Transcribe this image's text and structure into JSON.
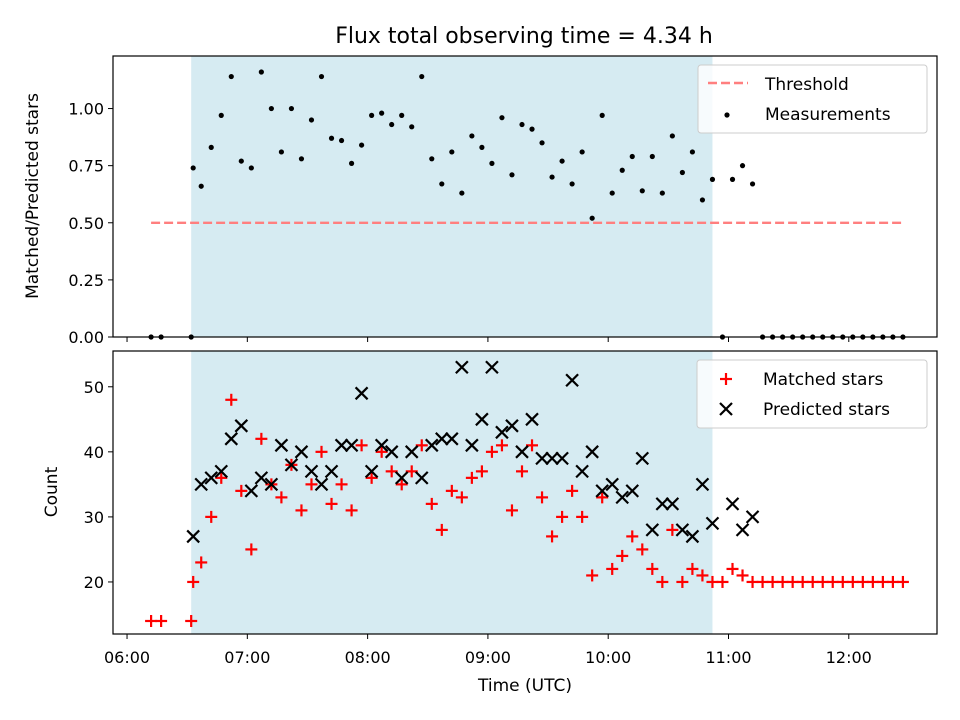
{
  "figure": {
    "title": "Flux total observing time = 4.34 h",
    "xlabel": "Time (UTC)",
    "x_tick_labels": [
      "06:00",
      "07:00",
      "08:00",
      "09:00",
      "10:00",
      "11:00",
      "12:00"
    ]
  },
  "chart_data": [
    {
      "type": "scatter",
      "ylabel": "Matched/Predicted stars",
      "ylim": [
        0,
        1.23
      ],
      "yticks": [
        "0.00",
        "0.25",
        "0.50",
        "0.75",
        "1.00"
      ],
      "xlim": [
        "05:53",
        "12:44"
      ],
      "shaded_interval": [
        "06:32",
        "10:52"
      ],
      "shaded_color": "#add8e6",
      "legend_position": "top-right",
      "threshold": {
        "name": "Threshold",
        "value": 0.5,
        "x_range": [
          "06:12",
          "12:28"
        ],
        "color": "#ff7f7f",
        "style": "dashed"
      },
      "series": [
        {
          "name": "Measurements",
          "color": "#000000",
          "marker": "dot",
          "points": [
            [
              "06:12",
              0.0
            ],
            [
              "06:17",
              0.0
            ],
            [
              "06:32",
              0.0
            ],
            [
              "06:33",
              0.74
            ],
            [
              "06:37",
              0.66
            ],
            [
              "06:42",
              0.83
            ],
            [
              "06:47",
              0.97
            ],
            [
              "06:52",
              1.14
            ],
            [
              "06:57",
              0.77
            ],
            [
              "07:02",
              0.74
            ],
            [
              "07:07",
              1.16
            ],
            [
              "07:12",
              1.0
            ],
            [
              "07:17",
              0.81
            ],
            [
              "07:22",
              1.0
            ],
            [
              "07:27",
              0.78
            ],
            [
              "07:32",
              0.95
            ],
            [
              "07:37",
              1.14
            ],
            [
              "07:42",
              0.87
            ],
            [
              "07:47",
              0.86
            ],
            [
              "07:52",
              0.76
            ],
            [
              "07:57",
              0.84
            ],
            [
              "08:02",
              0.97
            ],
            [
              "08:07",
              0.98
            ],
            [
              "08:12",
              0.93
            ],
            [
              "08:17",
              0.97
            ],
            [
              "08:22",
              0.92
            ],
            [
              "08:27",
              1.14
            ],
            [
              "08:32",
              0.78
            ],
            [
              "08:37",
              0.67
            ],
            [
              "08:42",
              0.81
            ],
            [
              "08:47",
              0.63
            ],
            [
              "08:52",
              0.88
            ],
            [
              "08:57",
              0.83
            ],
            [
              "09:02",
              0.76
            ],
            [
              "09:07",
              0.96
            ],
            [
              "09:12",
              0.71
            ],
            [
              "09:17",
              0.93
            ],
            [
              "09:22",
              0.91
            ],
            [
              "09:27",
              0.85
            ],
            [
              "09:32",
              0.7
            ],
            [
              "09:37",
              0.77
            ],
            [
              "09:42",
              0.67
            ],
            [
              "09:47",
              0.81
            ],
            [
              "09:52",
              0.52
            ],
            [
              "09:57",
              0.97
            ],
            [
              "10:02",
              0.63
            ],
            [
              "10:07",
              0.73
            ],
            [
              "10:12",
              0.79
            ],
            [
              "10:17",
              0.64
            ],
            [
              "10:22",
              0.79
            ],
            [
              "10:27",
              0.63
            ],
            [
              "10:32",
              0.88
            ],
            [
              "10:37",
              0.72
            ],
            [
              "10:42",
              0.81
            ],
            [
              "10:47",
              0.6
            ],
            [
              "10:52",
              0.69
            ],
            [
              "10:57",
              0.0
            ],
            [
              "11:02",
              0.69
            ],
            [
              "11:07",
              0.75
            ],
            [
              "11:12",
              0.67
            ],
            [
              "11:17",
              0.0
            ],
            [
              "11:22",
              0.0
            ],
            [
              "11:27",
              0.0
            ],
            [
              "11:32",
              0.0
            ],
            [
              "11:37",
              0.0
            ],
            [
              "11:42",
              0.0
            ],
            [
              "11:47",
              0.0
            ],
            [
              "11:52",
              0.0
            ],
            [
              "11:57",
              0.0
            ],
            [
              "12:02",
              0.0
            ],
            [
              "12:07",
              0.0
            ],
            [
              "12:12",
              0.0
            ],
            [
              "12:17",
              0.0
            ],
            [
              "12:22",
              0.0
            ],
            [
              "12:27",
              0.0
            ]
          ]
        }
      ]
    },
    {
      "type": "scatter",
      "ylabel": "Count",
      "ylim": [
        12,
        55.5
      ],
      "yticks": [
        "20",
        "30",
        "40",
        "50"
      ],
      "xlim": [
        "05:53",
        "12:44"
      ],
      "shaded_interval": [
        "06:32",
        "10:52"
      ],
      "shaded_color": "#add8e6",
      "legend_position": "top-right",
      "series": [
        {
          "name": "Matched stars",
          "color": "#ff0000",
          "marker": "plus",
          "points": [
            [
              "06:12",
              14
            ],
            [
              "06:17",
              14
            ],
            [
              "06:32",
              14
            ],
            [
              "06:33",
              20
            ],
            [
              "06:37",
              23
            ],
            [
              "06:42",
              30
            ],
            [
              "06:47",
              36
            ],
            [
              "06:52",
              48
            ],
            [
              "06:57",
              34
            ],
            [
              "07:02",
              25
            ],
            [
              "07:07",
              42
            ],
            [
              "07:12",
              35
            ],
            [
              "07:17",
              33
            ],
            [
              "07:22",
              38
            ],
            [
              "07:27",
              31
            ],
            [
              "07:32",
              35
            ],
            [
              "07:37",
              40
            ],
            [
              "07:42",
              32
            ],
            [
              "07:47",
              35
            ],
            [
              "07:52",
              31
            ],
            [
              "07:57",
              41
            ],
            [
              "08:02",
              36
            ],
            [
              "08:07",
              40
            ],
            [
              "08:12",
              37
            ],
            [
              "08:17",
              35
            ],
            [
              "08:22",
              37
            ],
            [
              "08:27",
              41
            ],
            [
              "08:32",
              32
            ],
            [
              "08:37",
              28
            ],
            [
              "08:42",
              34
            ],
            [
              "08:47",
              33
            ],
            [
              "08:52",
              36
            ],
            [
              "08:57",
              37
            ],
            [
              "09:02",
              40
            ],
            [
              "09:07",
              41
            ],
            [
              "09:12",
              31
            ],
            [
              "09:17",
              37
            ],
            [
              "09:22",
              41
            ],
            [
              "09:27",
              33
            ],
            [
              "09:32",
              27
            ],
            [
              "09:37",
              30
            ],
            [
              "09:42",
              34
            ],
            [
              "09:47",
              30
            ],
            [
              "09:52",
              21
            ],
            [
              "09:57",
              33
            ],
            [
              "10:02",
              22
            ],
            [
              "10:07",
              24
            ],
            [
              "10:12",
              27
            ],
            [
              "10:17",
              25
            ],
            [
              "10:22",
              22
            ],
            [
              "10:27",
              20
            ],
            [
              "10:32",
              28
            ],
            [
              "10:37",
              20
            ],
            [
              "10:42",
              22
            ],
            [
              "10:47",
              21
            ],
            [
              "10:52",
              20
            ],
            [
              "10:57",
              20
            ],
            [
              "11:02",
              22
            ],
            [
              "11:07",
              21
            ],
            [
              "11:12",
              20
            ],
            [
              "11:17",
              20
            ],
            [
              "11:22",
              20
            ],
            [
              "11:27",
              20
            ],
            [
              "11:32",
              20
            ],
            [
              "11:37",
              20
            ],
            [
              "11:42",
              20
            ],
            [
              "11:47",
              20
            ],
            [
              "11:52",
              20
            ],
            [
              "11:57",
              20
            ],
            [
              "12:02",
              20
            ],
            [
              "12:07",
              20
            ],
            [
              "12:12",
              20
            ],
            [
              "12:17",
              20
            ],
            [
              "12:22",
              20
            ],
            [
              "12:27",
              20
            ]
          ]
        },
        {
          "name": "Predicted stars",
          "color": "#000000",
          "marker": "x",
          "points": [
            [
              "06:33",
              27
            ],
            [
              "06:37",
              35
            ],
            [
              "06:42",
              36
            ],
            [
              "06:47",
              37
            ],
            [
              "06:52",
              42
            ],
            [
              "06:57",
              44
            ],
            [
              "07:02",
              34
            ],
            [
              "07:07",
              36
            ],
            [
              "07:12",
              35
            ],
            [
              "07:17",
              41
            ],
            [
              "07:22",
              38
            ],
            [
              "07:27",
              40
            ],
            [
              "07:32",
              37
            ],
            [
              "07:37",
              35
            ],
            [
              "07:42",
              37
            ],
            [
              "07:47",
              41
            ],
            [
              "07:52",
              41
            ],
            [
              "07:57",
              49
            ],
            [
              "08:02",
              37
            ],
            [
              "08:07",
              41
            ],
            [
              "08:12",
              40
            ],
            [
              "08:17",
              36
            ],
            [
              "08:22",
              40
            ],
            [
              "08:27",
              36
            ],
            [
              "08:32",
              41
            ],
            [
              "08:37",
              42
            ],
            [
              "08:42",
              42
            ],
            [
              "08:47",
              53
            ],
            [
              "08:52",
              41
            ],
            [
              "08:57",
              45
            ],
            [
              "09:02",
              53
            ],
            [
              "09:07",
              43
            ],
            [
              "09:12",
              44
            ],
            [
              "09:17",
              40
            ],
            [
              "09:22",
              45
            ],
            [
              "09:27",
              39
            ],
            [
              "09:32",
              39
            ],
            [
              "09:37",
              39
            ],
            [
              "09:42",
              51
            ],
            [
              "09:47",
              37
            ],
            [
              "09:52",
              40
            ],
            [
              "09:57",
              34
            ],
            [
              "10:02",
              35
            ],
            [
              "10:07",
              33
            ],
            [
              "10:12",
              34
            ],
            [
              "10:17",
              39
            ],
            [
              "10:22",
              28
            ],
            [
              "10:27",
              32
            ],
            [
              "10:32",
              32
            ],
            [
              "10:37",
              28
            ],
            [
              "10:42",
              27
            ],
            [
              "10:47",
              35
            ],
            [
              "10:52",
              29
            ],
            [
              "11:02",
              32
            ],
            [
              "11:07",
              28
            ],
            [
              "11:12",
              30
            ]
          ]
        }
      ]
    }
  ]
}
